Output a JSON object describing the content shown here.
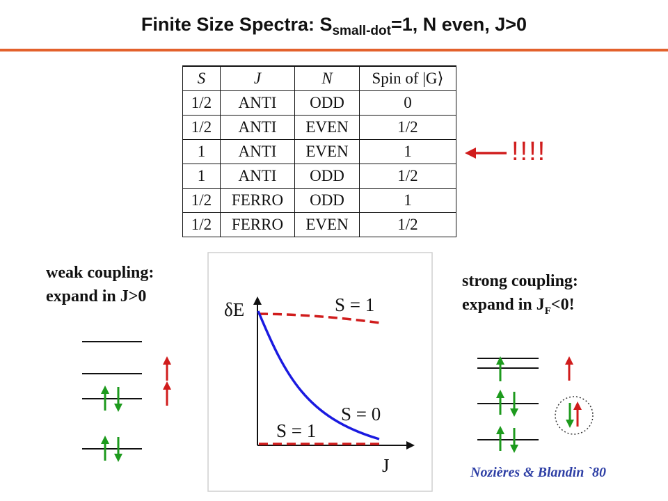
{
  "title": {
    "prefix": "Finite Size Spectra: S",
    "subscript": "small-dot",
    "suffix": "=1, N even,  J>0"
  },
  "colors": {
    "rule": "#e3612c",
    "red": "#d01c1c",
    "green": "#1d9a1d",
    "blue": "#1a1ae0",
    "credit": "#2e3fa5"
  },
  "table": {
    "headers": [
      "S",
      "J",
      "N",
      "Spin of |G⟩"
    ],
    "rows": [
      [
        "1/2",
        "ANTI",
        "ODD",
        "0"
      ],
      [
        "1/2",
        "ANTI",
        "EVEN",
        "1/2"
      ],
      [
        "1",
        "ANTI",
        "EVEN",
        "1"
      ],
      [
        "1",
        "ANTI",
        "ODD",
        "1/2"
      ],
      [
        "1/2",
        "FERRO",
        "ODD",
        "1"
      ],
      [
        "1/2",
        "FERRO",
        "EVEN",
        "1/2"
      ]
    ]
  },
  "highlight": {
    "marker": "!!!!",
    "row_index": 2
  },
  "weak": {
    "line1": "weak coupling:",
    "line2": "expand in J>0"
  },
  "strong": {
    "line1": "strong coupling:",
    "line2_main": "expand in J",
    "line2_sub": "F",
    "line2_end": "<0!"
  },
  "plot": {
    "ylabel": "δE",
    "xlabel": "J",
    "label_s1_top": "S = 1",
    "label_s0": "S = 0",
    "label_s1_bottom": "S = 1"
  },
  "credit": "Nozières & Blandin `80"
}
